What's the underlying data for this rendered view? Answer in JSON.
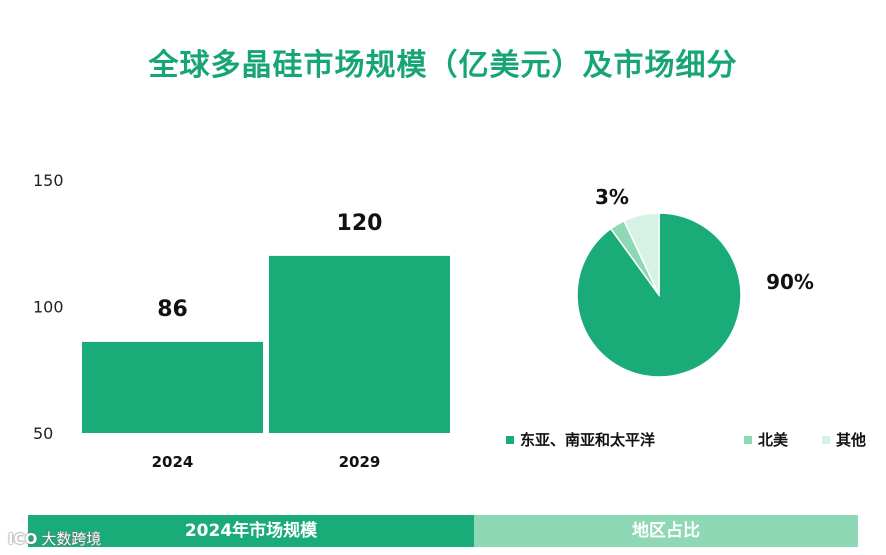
{
  "title": "全球多晶硅市场规模（亿美元）及市场细分",
  "colors": {
    "primary": "#1aac78",
    "light": "#8fd8b5",
    "pale": "#d6f2e4"
  },
  "chart_data": [
    {
      "type": "bar",
      "categories": [
        "2024",
        "2029"
      ],
      "values": [
        86,
        120
      ],
      "data_labels": [
        "86",
        "120"
      ],
      "ylim": [
        50,
        150
      ],
      "yticks": [
        50,
        100,
        150
      ],
      "grid": false
    },
    {
      "type": "pie",
      "labels": [
        "东亚、南亚和太平洋",
        "北美",
        "其他"
      ],
      "values": [
        90,
        3,
        7
      ],
      "data_labels": [
        {
          "slice": 0,
          "text": "90%"
        },
        {
          "slice": 1,
          "text": "3%"
        }
      ],
      "legend_position": "bottom"
    }
  ],
  "footer": {
    "left": "2024年市场规模",
    "right": "地区占比"
  },
  "watermark": {
    "logo": "ICO",
    "text": "大数跨境"
  }
}
